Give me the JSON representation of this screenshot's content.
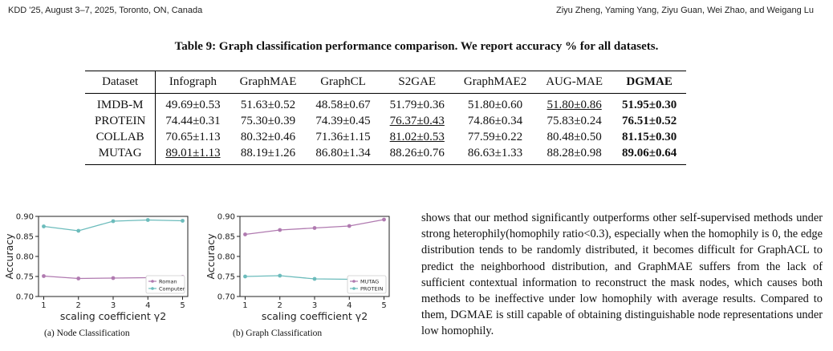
{
  "header": {
    "left": "KDD '25, August 3–7, 2025, Toronto, ON, Canada",
    "right": "Ziyu Zheng, Yaming Yang, Ziyu Guan, Wei Zhao, and Weigang Lu"
  },
  "table": {
    "caption": "Table 9: Graph classification performance comparison. We report accuracy % for all datasets.",
    "columns": [
      "Dataset",
      "Infograph",
      "GraphMAE",
      "GraphCL",
      "S2GAE",
      "GraphMAE2",
      "AUG-MAE",
      "DGMAE"
    ],
    "rows": [
      {
        "name": "IMDB-M",
        "cells": [
          {
            "v": "49.69±0.53"
          },
          {
            "v": "51.63±0.52"
          },
          {
            "v": "48.58±0.67"
          },
          {
            "v": "51.79±0.36"
          },
          {
            "v": "51.80±0.60"
          },
          {
            "v": "51.80±0.86",
            "underline": true
          },
          {
            "v": "51.95±0.30",
            "bold": true
          }
        ]
      },
      {
        "name": "PROTEIN",
        "cells": [
          {
            "v": "74.44±0.31"
          },
          {
            "v": "75.30±0.39"
          },
          {
            "v": "74.39±0.45"
          },
          {
            "v": "76.37±0.43",
            "underline": true
          },
          {
            "v": "74.86±0.34"
          },
          {
            "v": "75.83±0.24"
          },
          {
            "v": "76.51±0.52",
            "bold": true
          }
        ]
      },
      {
        "name": "COLLAB",
        "cells": [
          {
            "v": "70.65±1.13"
          },
          {
            "v": "80.32±0.46"
          },
          {
            "v": "71.36±1.15"
          },
          {
            "v": "81.02±0.53",
            "underline": true
          },
          {
            "v": "77.59±0.22"
          },
          {
            "v": "80.48±0.50"
          },
          {
            "v": "81.15±0.30",
            "bold": true
          }
        ]
      },
      {
        "name": "MUTAG",
        "cells": [
          {
            "v": "89.01±1.13",
            "underline": true
          },
          {
            "v": "88.19±1.26"
          },
          {
            "v": "86.80±1.34"
          },
          {
            "v": "88.26±0.76"
          },
          {
            "v": "86.63±1.33"
          },
          {
            "v": "88.28±0.98"
          },
          {
            "v": "89.06±0.64",
            "bold": true
          }
        ]
      }
    ]
  },
  "chart_data": [
    {
      "type": "line",
      "caption": "(a) Node Classification",
      "xlabel": "scaling coefficient γ2",
      "ylabel": "Accuracy",
      "x": [
        1,
        2,
        3,
        4,
        5
      ],
      "xlim": [
        0.85,
        5.15
      ],
      "ylim": [
        0.7,
        0.9
      ],
      "yticks": [
        "0.70",
        "0.75",
        "0.80",
        "0.85",
        "0.90"
      ],
      "series": [
        {
          "name": "Roman",
          "color": "#b07ab0",
          "values": [
            0.751,
            0.745,
            0.746,
            0.747,
            0.749
          ]
        },
        {
          "name": "Computer",
          "color": "#6cbcbc",
          "values": [
            0.875,
            0.864,
            0.888,
            0.891,
            0.889
          ]
        }
      ],
      "legend": "bottom-right"
    },
    {
      "type": "line",
      "caption": "(b) Graph Classification",
      "xlabel": "scaling coefficient γ2",
      "ylabel": "Accuracy",
      "x": [
        1,
        2,
        3,
        4,
        5
      ],
      "xlim": [
        0.85,
        5.15
      ],
      "ylim": [
        0.7,
        0.9
      ],
      "yticks": [
        "0.70",
        "0.75",
        "0.80",
        "0.85",
        "0.90"
      ],
      "series": [
        {
          "name": "MUTAG",
          "color": "#b07ab0",
          "values": [
            0.855,
            0.866,
            0.871,
            0.876,
            0.892
          ]
        },
        {
          "name": "PROTEIN",
          "color": "#6cbcbc",
          "values": [
            0.75,
            0.752,
            0.744,
            0.743,
            0.745
          ]
        }
      ],
      "legend": "bottom-right"
    }
  ],
  "body_text": "shows that our method significantly outperforms other self-supervised methods under strong heterophily(homophily ratio<0.3), especially when the homophily is 0, the edge distribution tends to be randomly distributed, it becomes difficult for GraphACL to predict the neighborhood distribution, and GraphMAE suffers from the lack of sufficient contextual information to reconstruct the mask nodes, which causes both methods to be ineffective under low homophily with average results. Compared to them, DGMAE is still capable of obtaining distinguishable node representations under low homophily."
}
